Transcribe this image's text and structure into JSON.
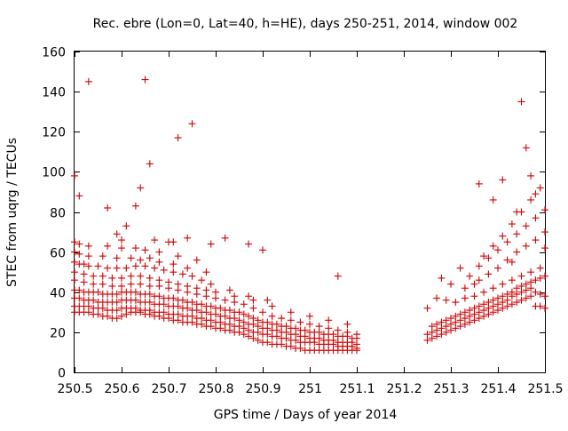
{
  "chart_data": {
    "type": "scatter",
    "title": "Rec. ebre (Lon=0, Lat=40, h=HE), days 250-251, 2014, window 002",
    "xlabel": "GPS time / Days of year 2014",
    "ylabel": "STEC from uqrg / TECUs",
    "xlim": [
      250.5,
      251.5
    ],
    "ylim": [
      0,
      160
    ],
    "xticks": [
      250.5,
      250.6,
      250.7,
      250.8,
      250.9,
      251,
      251.1,
      251.2,
      251.3,
      251.4,
      251.5
    ],
    "xtick_labels": [
      "250.5",
      "250.6",
      "250.7",
      "250.8",
      "250.9",
      "251",
      "251.1",
      "251.2",
      "251.3",
      "251.4",
      "251.5"
    ],
    "yticks": [
      0,
      20,
      40,
      60,
      80,
      100,
      120,
      140,
      160
    ],
    "ytick_labels": [
      "0",
      "20",
      "40",
      "60",
      "80",
      "100",
      "120",
      "140",
      "160"
    ],
    "marker": "+",
    "color": "#cc0000",
    "grid": false,
    "series": [
      {
        "x": [
          250.5,
          250.51,
          250.52,
          250.53,
          250.54,
          250.55,
          250.56,
          250.57,
          250.58,
          250.59,
          250.6,
          250.61,
          250.62,
          250.63,
          250.64,
          250.65,
          250.66,
          250.67,
          250.68,
          250.69,
          250.7,
          250.71,
          250.72,
          250.73,
          250.74,
          250.75,
          250.76,
          250.77,
          250.78,
          250.79,
          250.8,
          250.81,
          250.82,
          250.83,
          250.84,
          250.85,
          250.86,
          250.87,
          250.88,
          250.89,
          250.9,
          250.91,
          250.92,
          250.93,
          250.94,
          250.95,
          250.96,
          250.97,
          250.98,
          250.99,
          251.0,
          251.01,
          251.02,
          251.03,
          251.04,
          251.05,
          251.06,
          251.07,
          251.08,
          251.09,
          251.1,
          250.5,
          250.51,
          250.52,
          250.53,
          250.54,
          250.55,
          250.56,
          250.57,
          250.58,
          250.59,
          250.6,
          250.61,
          250.62,
          250.63,
          250.64,
          250.65,
          250.66,
          250.67,
          250.68,
          250.69,
          250.7,
          250.71,
          250.72,
          250.73,
          250.74,
          250.75,
          250.76,
          250.77,
          250.78,
          250.79,
          250.8,
          250.81,
          250.82,
          250.83,
          250.84,
          250.85,
          250.86,
          250.87,
          250.88,
          250.89,
          250.9,
          250.91,
          250.92,
          250.93,
          250.94,
          250.95,
          250.96,
          250.97,
          250.98,
          250.99,
          251.0,
          251.01,
          251.02,
          251.03,
          251.04,
          251.05,
          251.06,
          251.07,
          251.08,
          251.09,
          251.1,
          250.5,
          250.51,
          250.52,
          250.53,
          250.54,
          250.55,
          250.56,
          250.57,
          250.58,
          250.59,
          250.6,
          250.61,
          250.62,
          250.63,
          250.64,
          250.65,
          250.66,
          250.67,
          250.68,
          250.69,
          250.7,
          250.71,
          250.72,
          250.73,
          250.74,
          250.75,
          250.76,
          250.77,
          250.78,
          250.79,
          250.8,
          250.81,
          250.82,
          250.83,
          250.84,
          250.85,
          250.86,
          250.87,
          250.88,
          250.89,
          250.9,
          250.91,
          250.92,
          250.93,
          250.94,
          250.95,
          250.96,
          250.97,
          250.98,
          250.99,
          251.0,
          251.01,
          251.02,
          251.03,
          251.04,
          251.05,
          251.06,
          251.07,
          251.08,
          251.09,
          251.1,
          250.5,
          250.51,
          250.52,
          250.53,
          250.54,
          250.55,
          250.56,
          250.57,
          250.58,
          250.59,
          250.6,
          250.61,
          250.62,
          250.63,
          250.64,
          250.65,
          250.66,
          250.67,
          250.68,
          250.69,
          250.7,
          250.71,
          250.72,
          250.73,
          250.74,
          250.75,
          250.76,
          250.77,
          250.78,
          250.79,
          250.8,
          250.81,
          250.82,
          250.83,
          250.84,
          250.85,
          250.86,
          250.87,
          250.88,
          250.89,
          250.9,
          250.91,
          250.92,
          250.93,
          250.94,
          250.95,
          250.96,
          250.97,
          250.98,
          250.99,
          251.0,
          251.01,
          251.02,
          251.03,
          251.04,
          251.05,
          251.06,
          251.07,
          251.08,
          251.09,
          251.1,
          250.5,
          250.52,
          250.54,
          250.56,
          250.58,
          250.6,
          250.62,
          250.64,
          250.66,
          250.68,
          250.7,
          250.72,
          250.74,
          250.76,
          250.78,
          250.8,
          250.82,
          250.84,
          250.86,
          250.88,
          250.9,
          250.92,
          250.94,
          250.96,
          250.98,
          251.0,
          251.02,
          251.04,
          251.06,
          251.08,
          251.1,
          250.5,
          250.52,
          250.54,
          250.56,
          250.58,
          250.6,
          250.62,
          250.64,
          250.66,
          250.68,
          250.7,
          250.72,
          250.74,
          250.76,
          250.78,
          250.8,
          250.84,
          250.88,
          250.92,
          250.96,
          251.0,
          251.04,
          251.08,
          250.5,
          250.51,
          250.52,
          250.53,
          250.55,
          250.57,
          250.59,
          250.61,
          250.63,
          250.65,
          250.67,
          250.69,
          250.71,
          250.73,
          250.75,
          250.77,
          250.79,
          250.83,
          250.87,
          250.91,
          250.5,
          250.51,
          250.53,
          250.56,
          250.59,
          250.62,
          250.64,
          250.66,
          250.68,
          250.71,
          250.74,
          250.78,
          250.5,
          250.51,
          250.53,
          250.57,
          250.6,
          250.63,
          250.65,
          250.68,
          250.72,
          250.76,
          250.53,
          250.65,
          250.72,
          250.75,
          250.66,
          250.51,
          250.64,
          250.57,
          250.61,
          250.63,
          250.59,
          250.7,
          250.6,
          250.67,
          250.71,
          250.74,
          250.79,
          250.82,
          250.87,
          250.9,
          250.5,
          251.06,
          251.25,
          251.26,
          251.27,
          251.28,
          251.29,
          251.3,
          251.31,
          251.32,
          251.33,
          251.34,
          251.35,
          251.36,
          251.37,
          251.38,
          251.39,
          251.4,
          251.41,
          251.42,
          251.43,
          251.44,
          251.45,
          251.46,
          251.47,
          251.48,
          251.49,
          251.5,
          251.25,
          251.26,
          251.27,
          251.28,
          251.29,
          251.3,
          251.31,
          251.32,
          251.33,
          251.34,
          251.35,
          251.36,
          251.37,
          251.38,
          251.39,
          251.4,
          251.41,
          251.42,
          251.43,
          251.44,
          251.45,
          251.46,
          251.47,
          251.48,
          251.49,
          251.5,
          251.26,
          251.27,
          251.28,
          251.29,
          251.3,
          251.31,
          251.32,
          251.33,
          251.34,
          251.35,
          251.36,
          251.37,
          251.38,
          251.39,
          251.4,
          251.41,
          251.42,
          251.43,
          251.44,
          251.45,
          251.46,
          251.47,
          251.48,
          251.49,
          251.5,
          251.27,
          251.29,
          251.31,
          251.33,
          251.35,
          251.37,
          251.39,
          251.41,
          251.43,
          251.45,
          251.47,
          251.49,
          251.3,
          251.33,
          251.36,
          251.38,
          251.4,
          251.42,
          251.44,
          251.46,
          251.48,
          251.5,
          251.34,
          251.36,
          251.38,
          251.4,
          251.42,
          251.44,
          251.46,
          251.48,
          251.5,
          251.37,
          251.39,
          251.41,
          251.43,
          251.45,
          251.47,
          251.49,
          251.25,
          251.28,
          251.32,
          251.36,
          251.39,
          251.41,
          251.44,
          251.45,
          251.46,
          251.47,
          251.5,
          251.48,
          251.43,
          251.35
        ],
        "y": [
          30,
          30,
          30,
          30,
          29,
          29,
          28,
          28,
          27,
          27,
          28,
          29,
          30,
          30,
          30,
          29,
          29,
          28,
          28,
          27,
          27,
          26,
          26,
          25,
          25,
          25,
          24,
          24,
          23,
          23,
          22,
          22,
          21,
          21,
          20,
          20,
          19,
          18,
          17,
          16,
          15,
          15,
          14,
          14,
          14,
          13,
          13,
          12,
          12,
          11,
          11,
          11,
          11,
          11,
          11,
          11,
          11,
          11,
          11,
          11,
          11,
          33,
          33,
          33,
          33,
          32,
          32,
          32,
          31,
          31,
          31,
          32,
          32,
          32,
          32,
          31,
          31,
          31,
          30,
          30,
          30,
          29,
          29,
          29,
          28,
          28,
          28,
          27,
          27,
          26,
          26,
          25,
          25,
          24,
          24,
          23,
          23,
          22,
          21,
          20,
          20,
          19,
          19,
          18,
          18,
          17,
          17,
          16,
          16,
          15,
          15,
          15,
          15,
          14,
          14,
          14,
          14,
          13,
          13,
          13,
          13,
          12,
          37,
          37,
          36,
          36,
          36,
          35,
          35,
          35,
          35,
          35,
          36,
          36,
          36,
          36,
          35,
          35,
          35,
          34,
          34,
          34,
          33,
          33,
          33,
          32,
          32,
          31,
          31,
          30,
          30,
          29,
          29,
          28,
          28,
          27,
          27,
          26,
          25,
          24,
          24,
          23,
          22,
          22,
          21,
          21,
          20,
          20,
          19,
          19,
          18,
          18,
          17,
          17,
          17,
          16,
          16,
          16,
          15,
          15,
          15,
          15,
          14,
          41,
          41,
          40,
          40,
          40,
          40,
          39,
          39,
          39,
          39,
          40,
          40,
          40,
          40,
          39,
          39,
          39,
          38,
          38,
          37,
          37,
          37,
          36,
          36,
          35,
          35,
          34,
          34,
          33,
          33,
          32,
          32,
          31,
          31,
          30,
          30,
          29,
          28,
          27,
          26,
          25,
          25,
          24,
          24,
          23,
          23,
          22,
          22,
          21,
          21,
          20,
          20,
          20,
          19,
          19,
          19,
          18,
          18,
          18,
          17,
          17,
          46,
          45,
          44,
          44,
          43,
          43,
          44,
          44,
          43,
          43,
          42,
          41,
          40,
          39,
          38,
          37,
          36,
          35,
          34,
          32,
          30,
          28,
          27,
          26,
          25,
          24,
          23,
          22,
          21,
          20,
          19,
          50,
          49,
          48,
          48,
          47,
          47,
          48,
          48,
          47,
          46,
          45,
          44,
          43,
          42,
          41,
          40,
          38,
          36,
          33,
          30,
          28,
          26,
          24,
          55,
          54,
          54,
          53,
          53,
          52,
          52,
          52,
          53,
          53,
          52,
          51,
          50,
          49,
          48,
          46,
          44,
          41,
          38,
          36,
          60,
          59,
          58,
          58,
          57,
          57,
          56,
          57,
          55,
          54,
          52,
          50,
          65,
          64,
          63,
          63,
          62,
          62,
          61,
          60,
          58,
          56,
          145,
          146,
          117,
          124,
          104,
          88,
          92,
          82,
          73,
          83,
          69,
          65,
          66,
          66,
          65,
          67,
          64,
          67,
          64,
          61,
          98,
          48,
          16,
          17,
          18,
          19,
          20,
          21,
          22,
          23,
          24,
          25,
          26,
          27,
          28,
          29,
          30,
          31,
          32,
          33,
          34,
          35,
          36,
          37,
          38,
          33,
          33,
          32,
          19,
          20,
          21,
          22,
          23,
          24,
          25,
          26,
          27,
          28,
          29,
          30,
          31,
          32,
          33,
          34,
          35,
          36,
          38,
          39,
          40,
          41,
          42,
          40,
          39,
          38,
          23,
          24,
          25,
          26,
          27,
          28,
          29,
          30,
          31,
          32,
          33,
          34,
          35,
          36,
          37,
          38,
          39,
          40,
          42,
          43,
          44,
          45,
          46,
          47,
          48,
          37,
          36,
          35,
          37,
          38,
          40,
          42,
          44,
          46,
          48,
          50,
          52,
          44,
          42,
          46,
          49,
          52,
          56,
          60,
          63,
          66,
          70,
          48,
          53,
          57,
          61,
          65,
          69,
          73,
          77,
          81,
          58,
          63,
          68,
          74,
          80,
          86,
          92,
          32,
          47,
          52,
          94,
          86,
          96,
          80,
          135,
          112,
          98,
          62,
          89,
          55,
          44
        ]
      }
    ]
  }
}
